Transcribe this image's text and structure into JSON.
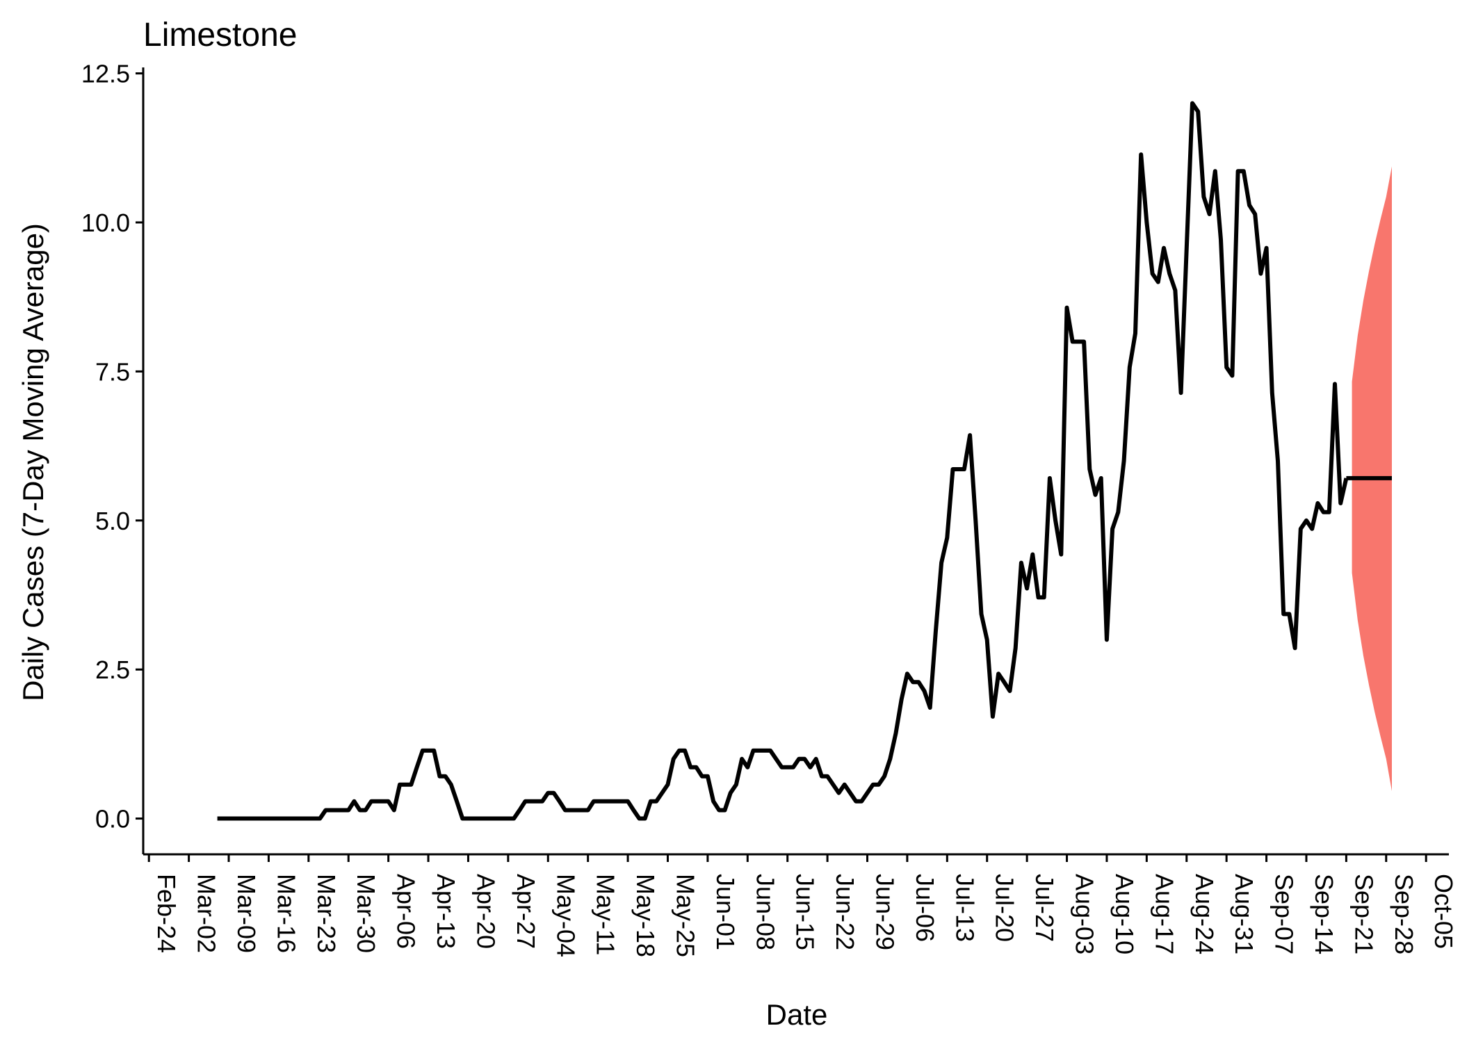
{
  "chart_data": {
    "type": "line",
    "title": "Limestone",
    "xlabel": "Date",
    "ylabel": "Daily Cases (7-Day Moving Average)",
    "xlim": [
      "2020-02-23",
      "2020-10-09"
    ],
    "ylim": [
      -0.6,
      12.6
    ],
    "grid": false,
    "legend": "none",
    "x_ticks": [
      "Feb-24",
      "Mar-02",
      "Mar-09",
      "Mar-16",
      "Mar-23",
      "Mar-30",
      "Apr-06",
      "Apr-13",
      "Apr-20",
      "Apr-27",
      "May-04",
      "May-11",
      "May-18",
      "May-25",
      "Jun-01",
      "Jun-08",
      "Jun-15",
      "Jun-22",
      "Jun-29",
      "Jul-06",
      "Jul-13",
      "Jul-20",
      "Jul-27",
      "Aug-03",
      "Aug-10",
      "Aug-17",
      "Aug-24",
      "Aug-31",
      "Sep-07",
      "Sep-14",
      "Sep-21",
      "Sep-28",
      "Oct-05"
    ],
    "y_ticks": [
      "0.0",
      "2.5",
      "5.0",
      "7.5",
      "10.0",
      "12.5"
    ],
    "colors": {
      "line": "#000000",
      "forecast_band": "#f8766d"
    },
    "series": [
      {
        "role": "observed",
        "points": [
          [
            "2020-03-07",
            0
          ],
          [
            "2020-03-08",
            0
          ],
          [
            "2020-03-09",
            0
          ],
          [
            "2020-03-10",
            0
          ],
          [
            "2020-03-11",
            0
          ],
          [
            "2020-03-12",
            0
          ],
          [
            "2020-03-13",
            0
          ],
          [
            "2020-03-14",
            0
          ],
          [
            "2020-03-15",
            0
          ],
          [
            "2020-03-16",
            0
          ],
          [
            "2020-03-17",
            0
          ],
          [
            "2020-03-18",
            0
          ],
          [
            "2020-03-19",
            0
          ],
          [
            "2020-03-20",
            0
          ],
          [
            "2020-03-21",
            0
          ],
          [
            "2020-03-22",
            0
          ],
          [
            "2020-03-23",
            0
          ],
          [
            "2020-03-24",
            0
          ],
          [
            "2020-03-25",
            0
          ],
          [
            "2020-03-26",
            0.14
          ],
          [
            "2020-03-27",
            0.14
          ],
          [
            "2020-03-28",
            0.14
          ],
          [
            "2020-03-29",
            0.14
          ],
          [
            "2020-03-30",
            0.14
          ],
          [
            "2020-03-31",
            0.29
          ],
          [
            "2020-04-01",
            0.14
          ],
          [
            "2020-04-02",
            0.14
          ],
          [
            "2020-04-03",
            0.29
          ],
          [
            "2020-04-04",
            0.29
          ],
          [
            "2020-04-05",
            0.29
          ],
          [
            "2020-04-06",
            0.29
          ],
          [
            "2020-04-07",
            0.14
          ],
          [
            "2020-04-08",
            0.57
          ],
          [
            "2020-04-09",
            0.57
          ],
          [
            "2020-04-10",
            0.57
          ],
          [
            "2020-04-11",
            0.86
          ],
          [
            "2020-04-12",
            1.14
          ],
          [
            "2020-04-13",
            1.14
          ],
          [
            "2020-04-14",
            1.14
          ],
          [
            "2020-04-15",
            0.71
          ],
          [
            "2020-04-16",
            0.71
          ],
          [
            "2020-04-17",
            0.57
          ],
          [
            "2020-04-18",
            0.29
          ],
          [
            "2020-04-19",
            0
          ],
          [
            "2020-04-20",
            0
          ],
          [
            "2020-04-21",
            0
          ],
          [
            "2020-04-22",
            0
          ],
          [
            "2020-04-23",
            0
          ],
          [
            "2020-04-24",
            0
          ],
          [
            "2020-04-25",
            0
          ],
          [
            "2020-04-26",
            0
          ],
          [
            "2020-04-27",
            0
          ],
          [
            "2020-04-28",
            0
          ],
          [
            "2020-04-29",
            0.14
          ],
          [
            "2020-04-30",
            0.29
          ],
          [
            "2020-05-01",
            0.29
          ],
          [
            "2020-05-02",
            0.29
          ],
          [
            "2020-05-03",
            0.29
          ],
          [
            "2020-05-04",
            0.43
          ],
          [
            "2020-05-05",
            0.43
          ],
          [
            "2020-05-06",
            0.29
          ],
          [
            "2020-05-07",
            0.14
          ],
          [
            "2020-05-08",
            0.14
          ],
          [
            "2020-05-09",
            0.14
          ],
          [
            "2020-05-10",
            0.14
          ],
          [
            "2020-05-11",
            0.14
          ],
          [
            "2020-05-12",
            0.29
          ],
          [
            "2020-05-13",
            0.29
          ],
          [
            "2020-05-14",
            0.29
          ],
          [
            "2020-05-15",
            0.29
          ],
          [
            "2020-05-16",
            0.29
          ],
          [
            "2020-05-17",
            0.29
          ],
          [
            "2020-05-18",
            0.29
          ],
          [
            "2020-05-19",
            0.14
          ],
          [
            "2020-05-20",
            0
          ],
          [
            "2020-05-21",
            0
          ],
          [
            "2020-05-22",
            0.29
          ],
          [
            "2020-05-23",
            0.29
          ],
          [
            "2020-05-24",
            0.43
          ],
          [
            "2020-05-25",
            0.57
          ],
          [
            "2020-05-26",
            1.0
          ],
          [
            "2020-05-27",
            1.14
          ],
          [
            "2020-05-28",
            1.14
          ],
          [
            "2020-05-29",
            0.86
          ],
          [
            "2020-05-30",
            0.86
          ],
          [
            "2020-05-31",
            0.71
          ],
          [
            "2020-06-01",
            0.71
          ],
          [
            "2020-06-02",
            0.29
          ],
          [
            "2020-06-03",
            0.14
          ],
          [
            "2020-06-04",
            0.14
          ],
          [
            "2020-06-05",
            0.43
          ],
          [
            "2020-06-06",
            0.57
          ],
          [
            "2020-06-07",
            1.0
          ],
          [
            "2020-06-08",
            0.86
          ],
          [
            "2020-06-09",
            1.14
          ],
          [
            "2020-06-10",
            1.14
          ],
          [
            "2020-06-11",
            1.14
          ],
          [
            "2020-06-12",
            1.14
          ],
          [
            "2020-06-13",
            1.0
          ],
          [
            "2020-06-14",
            0.86
          ],
          [
            "2020-06-15",
            0.86
          ],
          [
            "2020-06-16",
            0.86
          ],
          [
            "2020-06-17",
            1.0
          ],
          [
            "2020-06-18",
            1.0
          ],
          [
            "2020-06-19",
            0.86
          ],
          [
            "2020-06-20",
            1.0
          ],
          [
            "2020-06-21",
            0.71
          ],
          [
            "2020-06-22",
            0.71
          ],
          [
            "2020-06-23",
            0.57
          ],
          [
            "2020-06-24",
            0.43
          ],
          [
            "2020-06-25",
            0.57
          ],
          [
            "2020-06-26",
            0.43
          ],
          [
            "2020-06-27",
            0.29
          ],
          [
            "2020-06-28",
            0.29
          ],
          [
            "2020-06-29",
            0.43
          ],
          [
            "2020-06-30",
            0.57
          ],
          [
            "2020-07-01",
            0.57
          ],
          [
            "2020-07-02",
            0.71
          ],
          [
            "2020-07-03",
            1.0
          ],
          [
            "2020-07-04",
            1.43
          ],
          [
            "2020-07-05",
            2.0
          ],
          [
            "2020-07-06",
            2.43
          ],
          [
            "2020-07-07",
            2.29
          ],
          [
            "2020-07-08",
            2.29
          ],
          [
            "2020-07-09",
            2.14
          ],
          [
            "2020-07-10",
            1.86
          ],
          [
            "2020-07-11",
            3.14
          ],
          [
            "2020-07-12",
            4.29
          ],
          [
            "2020-07-13",
            4.71
          ],
          [
            "2020-07-14",
            5.86
          ],
          [
            "2020-07-15",
            5.86
          ],
          [
            "2020-07-16",
            5.86
          ],
          [
            "2020-07-17",
            6.43
          ],
          [
            "2020-07-18",
            5.0
          ],
          [
            "2020-07-19",
            3.43
          ],
          [
            "2020-07-20",
            3.0
          ],
          [
            "2020-07-21",
            1.71
          ],
          [
            "2020-07-22",
            2.43
          ],
          [
            "2020-07-23",
            2.29
          ],
          [
            "2020-07-24",
            2.14
          ],
          [
            "2020-07-25",
            2.86
          ],
          [
            "2020-07-26",
            4.29
          ],
          [
            "2020-07-27",
            3.86
          ],
          [
            "2020-07-28",
            4.43
          ],
          [
            "2020-07-29",
            3.71
          ],
          [
            "2020-07-30",
            3.71
          ],
          [
            "2020-07-31",
            5.71
          ],
          [
            "2020-08-01",
            5.0
          ],
          [
            "2020-08-02",
            4.43
          ],
          [
            "2020-08-03",
            8.57
          ],
          [
            "2020-08-04",
            8.0
          ],
          [
            "2020-08-05",
            8.0
          ],
          [
            "2020-08-06",
            8.0
          ],
          [
            "2020-08-07",
            5.86
          ],
          [
            "2020-08-08",
            5.43
          ],
          [
            "2020-08-09",
            5.71
          ],
          [
            "2020-08-10",
            3.0
          ],
          [
            "2020-08-11",
            4.86
          ],
          [
            "2020-08-12",
            5.14
          ],
          [
            "2020-08-13",
            6.0
          ],
          [
            "2020-08-14",
            7.57
          ],
          [
            "2020-08-15",
            8.14
          ],
          [
            "2020-08-16",
            11.14
          ],
          [
            "2020-08-17",
            10.0
          ],
          [
            "2020-08-18",
            9.14
          ],
          [
            "2020-08-19",
            9.0
          ],
          [
            "2020-08-20",
            9.57
          ],
          [
            "2020-08-21",
            9.14
          ],
          [
            "2020-08-22",
            8.86
          ],
          [
            "2020-08-23",
            7.14
          ],
          [
            "2020-08-24",
            9.57
          ],
          [
            "2020-08-25",
            12.0
          ],
          [
            "2020-08-26",
            11.86
          ],
          [
            "2020-08-27",
            10.43
          ],
          [
            "2020-08-28",
            10.14
          ],
          [
            "2020-08-29",
            10.86
          ],
          [
            "2020-08-30",
            9.71
          ],
          [
            "2020-08-31",
            7.57
          ],
          [
            "2020-09-01",
            7.43
          ],
          [
            "2020-09-02",
            10.86
          ],
          [
            "2020-09-03",
            10.86
          ],
          [
            "2020-09-04",
            10.29
          ],
          [
            "2020-09-05",
            10.14
          ],
          [
            "2020-09-06",
            9.14
          ],
          [
            "2020-09-07",
            9.57
          ],
          [
            "2020-09-08",
            7.14
          ],
          [
            "2020-09-09",
            6.0
          ],
          [
            "2020-09-10",
            3.43
          ],
          [
            "2020-09-11",
            3.43
          ],
          [
            "2020-09-12",
            2.86
          ],
          [
            "2020-09-13",
            4.86
          ],
          [
            "2020-09-14",
            5.0
          ],
          [
            "2020-09-15",
            4.86
          ],
          [
            "2020-09-16",
            5.29
          ],
          [
            "2020-09-17",
            5.14
          ],
          [
            "2020-09-18",
            5.14
          ],
          [
            "2020-09-19",
            7.29
          ],
          [
            "2020-09-20",
            5.29
          ],
          [
            "2020-09-21",
            5.71
          ]
        ]
      },
      {
        "role": "forecast",
        "points": [
          [
            "2020-09-21",
            5.71
          ],
          [
            "2020-09-22",
            5.71
          ],
          [
            "2020-09-25",
            5.71
          ],
          [
            "2020-09-28",
            5.71
          ],
          [
            "2020-09-29",
            5.71
          ]
        ]
      }
    ],
    "forecast_interval": {
      "points": [
        [
          "2020-09-22",
          4.12,
          7.33
        ],
        [
          "2020-09-23",
          3.33,
          8.1
        ],
        [
          "2020-09-24",
          2.73,
          8.69
        ],
        [
          "2020-09-25",
          2.23,
          9.19
        ],
        [
          "2020-09-26",
          1.78,
          9.64
        ],
        [
          "2020-09-27",
          1.38,
          10.05
        ],
        [
          "2020-09-28",
          1.0,
          10.43
        ],
        [
          "2020-09-29",
          0.46,
          10.94
        ]
      ]
    }
  }
}
